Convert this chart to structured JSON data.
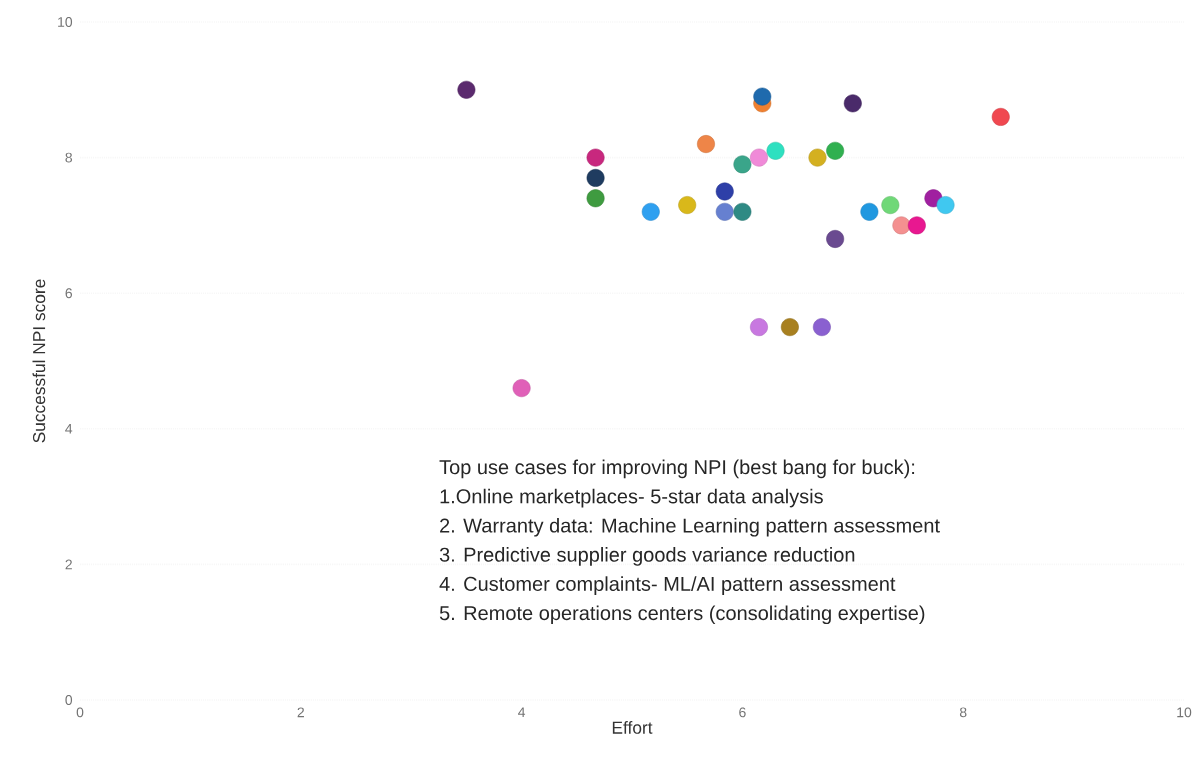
{
  "chart_data": {
    "type": "scatter",
    "xlabel": "Effort",
    "ylabel": "Successful NPI score",
    "xlim": [
      0,
      10
    ],
    "ylim": [
      0,
      10
    ],
    "xticks": [
      0,
      2,
      4,
      6,
      8,
      10
    ],
    "yticks": [
      0,
      2,
      4,
      6,
      8,
      10
    ],
    "grid": "y",
    "annotations": [
      "Top use cases for improving NPI (best bang for buck):",
      "1.Online marketplaces- 5-star data analysis",
      "2. Warranty data: Machine Learning pattern assessment",
      "3. Predictive supplier goods variance reduction",
      "4. Customer complaints- ML/AI pattern assessment",
      "5. Remote operations centers (consolidating expertise)"
    ],
    "series": [
      {
        "x": [
          3.5,
          4.67,
          4.67,
          4.67,
          5.17,
          5.5,
          5.67,
          5.84,
          5.84,
          6.0,
          6.0,
          6.15,
          6.18,
          6.18,
          6.3,
          6.15,
          6.43,
          6.72,
          6.68,
          6.84,
          7.0,
          6.84,
          7.15,
          7.34,
          7.44,
          7.58,
          7.73,
          7.84,
          8.34,
          4.0
        ],
        "values": [
          9.0,
          8.0,
          7.7,
          7.4,
          7.2,
          7.3,
          8.2,
          7.5,
          7.2,
          7.2,
          7.9,
          8.0,
          8.8,
          8.9,
          8.1,
          5.5,
          5.5,
          5.5,
          8.0,
          8.1,
          8.8,
          6.8,
          7.2,
          7.3,
          7.0,
          7.0,
          7.4,
          7.3,
          8.6,
          4.6
        ],
        "colors": [
          "#5b2a6e",
          "#c8287e",
          "#1f3c60",
          "#3f9b40",
          "#2fa0f0",
          "#d9b81a",
          "#ee8548",
          "#2e3fa8",
          "#6680d0",
          "#2e8a84",
          "#3aa58a",
          "#f08ad8",
          "#f08030",
          "#1f6aad",
          "#2ee0c0",
          "#c878e0",
          "#a88020",
          "#8a60d0",
          "#d4b020",
          "#30b050",
          "#4a2a6a",
          "#6a4a90",
          "#2098e0",
          "#70d878",
          "#f49090",
          "#e81890",
          "#a020a0",
          "#40c8f0",
          "#f04850",
          "#e060b8"
        ]
      }
    ]
  }
}
